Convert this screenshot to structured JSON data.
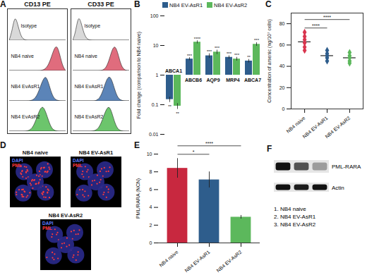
{
  "chart_data": [
    {
      "panel": "A",
      "type": "ridgeline",
      "title": "CD13 PE",
      "tick_labels": false,
      "xlim": [
        0,
        10
      ],
      "ylim": [
        0,
        1.15
      ],
      "x": [
        0,
        0.5,
        1,
        1.5,
        2,
        2.5,
        3,
        3.5,
        4,
        4.5,
        5,
        5.5,
        6,
        6.5,
        7,
        7.5,
        8,
        8.5,
        9,
        9.5,
        10
      ],
      "series": [
        {
          "name": "Isotype",
          "color": "#d9d9d9",
          "values": [
            0,
            0.35,
            1,
            0.65,
            0.2,
            0.04,
            0,
            0,
            0,
            0,
            0,
            0,
            0,
            0,
            0,
            0,
            0,
            0,
            0,
            0,
            0
          ]
        },
        {
          "name": "NB4 naive",
          "color": "#e06c7d",
          "values": [
            0,
            0,
            0,
            0,
            0,
            0,
            0,
            0,
            0,
            0,
            0,
            0,
            0.02,
            0.08,
            0.25,
            0.55,
            0.9,
            1,
            0.6,
            0.15,
            0
          ]
        },
        {
          "name": "NB4 EvAsR1",
          "color": "#5b84b8",
          "values": [
            0,
            0,
            0,
            0,
            0,
            0,
            0,
            0,
            0.02,
            0.08,
            0.25,
            0.55,
            0.85,
            1,
            0.7,
            0.3,
            0.08,
            0.02,
            0,
            0,
            0
          ]
        },
        {
          "name": "NB4 EvAsR2",
          "color": "#6cc56c",
          "values": [
            0,
            0,
            0,
            0,
            0,
            0,
            0,
            0.03,
            0.1,
            0.3,
            0.6,
            0.9,
            1,
            0.75,
            0.4,
            0.12,
            0.03,
            0,
            0,
            0,
            0
          ]
        }
      ]
    },
    {
      "type": "ridgeline",
      "title": "CD33 PE",
      "tick_labels": false,
      "xlim": [
        0,
        10
      ],
      "ylim": [
        0,
        1.15
      ],
      "x": [
        0,
        0.5,
        1,
        1.5,
        2,
        2.5,
        3,
        3.5,
        4,
        4.5,
        5,
        5.5,
        6,
        6.5,
        7,
        7.5,
        8,
        8.5,
        9,
        9.5,
        10
      ],
      "series": [
        {
          "name": "Isotype",
          "color": "#d9d9d9",
          "values": [
            0,
            0.3,
            1,
            0.7,
            0.25,
            0.05,
            0.01,
            0,
            0,
            0,
            0,
            0,
            0,
            0,
            0,
            0,
            0,
            0,
            0,
            0,
            0
          ]
        },
        {
          "name": "NB4 naive",
          "color": "#e06c7d",
          "values": [
            0,
            0,
            0,
            0,
            0,
            0,
            0,
            0,
            0,
            0,
            0,
            0.03,
            0.15,
            0.45,
            0.85,
            1,
            0.7,
            0.25,
            0.05,
            0,
            0
          ]
        },
        {
          "name": "NB4 EvAsR1",
          "color": "#5b84b8",
          "values": [
            0,
            0,
            0,
            0,
            0,
            0,
            0,
            0,
            0,
            0.05,
            0.2,
            0.5,
            0.85,
            1,
            0.8,
            0.4,
            0.12,
            0.03,
            0,
            0,
            0
          ]
        },
        {
          "name": "NB4 EvAsR2",
          "color": "#6cc56c",
          "values": [
            0,
            0,
            0,
            0,
            0,
            0,
            0,
            0,
            0.03,
            0.1,
            0.3,
            0.6,
            0.9,
            1,
            0.7,
            0.3,
            0.08,
            0.02,
            0,
            0,
            0
          ]
        }
      ]
    },
    {
      "panel": "B",
      "type": "bar",
      "ylabel": "Fold change (comparison to NB4 naive)",
      "log": "y",
      "legend": "top",
      "categories": [
        "ABCA1",
        "ABCB6",
        "AQP9",
        "MRP4",
        "ABCA7"
      ],
      "baseline": 1,
      "ylim": [
        0.01,
        100
      ],
      "yticks": [
        0.01,
        0.1,
        1,
        10,
        100
      ],
      "series": [
        {
          "name": "NB4 EV-AsR1",
          "color": "#2e5d8c",
          "values": [
            0.15,
            3.5,
            4.5,
            4,
            3
          ],
          "errors": [
            0.03,
            0.4,
            0.8,
            0.5,
            0.4
          ],
          "significance": [
            "**",
            "***",
            "***",
            "***",
            "**"
          ]
        },
        {
          "name": "NB4 EV-AsR2",
          "color": "#5cb85c",
          "values": [
            0.09,
            13,
            6,
            3.5,
            11
          ],
          "errors": [
            0.02,
            1.5,
            1,
            0.5,
            1.5
          ],
          "significance": [
            "**",
            "****",
            "***",
            "***",
            "***"
          ]
        }
      ]
    },
    {
      "panel": "C",
      "type": "scatter",
      "ylabel": "Concentration of arsenic (ng/10⁷ cells)",
      "marker": "diamond",
      "categories": [
        "NB4 naive",
        "NB4 EV-AsR1",
        "NB4 EV-AsR2"
      ],
      "colors": [
        "#d9364f",
        "#2e5d8c",
        "#5cb85c"
      ],
      "values": [
        [
          68,
          62,
          55,
          65,
          72,
          58
        ],
        [
          52,
          48,
          45,
          55,
          50
        ],
        [
          50,
          45,
          48,
          53,
          43
        ]
      ],
      "means": [
        63,
        50,
        48
      ],
      "ylim": [
        0,
        90
      ],
      "yticks": [
        0,
        20,
        40,
        60,
        80
      ],
      "annotations": [
        {
          "from": 0,
          "to": 1,
          "text": "****"
        },
        {
          "from": 0,
          "to": 2,
          "text": "****"
        }
      ]
    },
    {
      "panel": "D",
      "type": "image",
      "images": [
        "NB4 naive",
        "NB4 EV-AsR1",
        "NB4 EV-AsR2"
      ],
      "channels": [
        {
          "name": "DAPI",
          "color": "#5b7bff"
        },
        {
          "name": "PML",
          "color": "#ff3b3b"
        }
      ],
      "pml_signal": [
        1,
        0.5,
        0.4
      ]
    },
    {
      "panel": "E",
      "type": "bar",
      "ylabel": "PML/RARA (NCN)",
      "categories": [
        "NB4 naive",
        "NB4 EV-AsR1",
        "NB4 EV-AsR2"
      ],
      "colors": [
        "#c8283f",
        "#2e5d8c",
        "#5cb85c"
      ],
      "values": [
        8.4,
        7.1,
        2.9
      ],
      "errors": [
        1.1,
        0.9,
        0.2
      ],
      "ylim": [
        0,
        10
      ],
      "yticks": [
        0,
        2,
        4,
        6,
        8,
        10
      ],
      "annotations": [
        {
          "from": 0,
          "to": 1,
          "text": "*"
        },
        {
          "from": 0,
          "to": 2,
          "text": "****"
        }
      ]
    },
    {
      "panel": "F",
      "type": "blot",
      "lanes": [
        "1. NB4 naive",
        "2. NB4 EV-AsR1",
        "3. NB4 EV-AsR2"
      ],
      "bands": [
        {
          "name": "PML-RARA",
          "intensity": [
            1,
            0.7,
            0.35
          ]
        },
        {
          "name": "Actin",
          "intensity": [
            1,
            0.95,
            1
          ]
        }
      ]
    }
  ]
}
